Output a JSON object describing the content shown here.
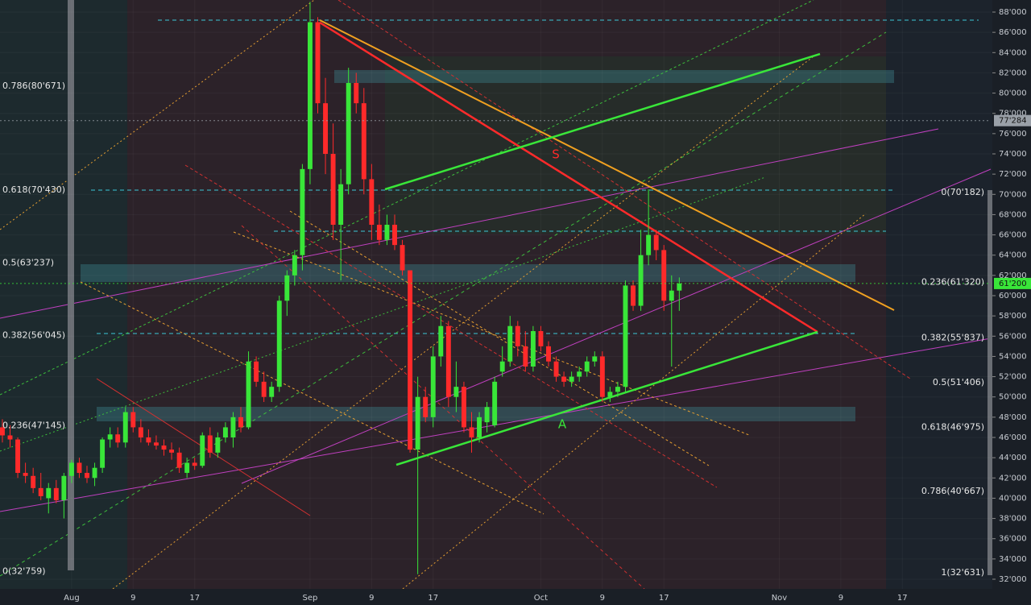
{
  "chart_data": {
    "type": "candlestick",
    "up_color": "#39e639",
    "down_color": "#ff2a2a",
    "grid": true,
    "ylim": [
      31045,
      89193
    ],
    "xlim": [
      -0.31,
      128.49
    ],
    "yticks": [
      {
        "value": 32000,
        "label": "32'000"
      },
      {
        "value": 34000,
        "label": "34'000"
      },
      {
        "value": 36000,
        "label": "36'000"
      },
      {
        "value": 38000,
        "label": "38'000"
      },
      {
        "value": 40000,
        "label": "40'000"
      },
      {
        "value": 42000,
        "label": "42'000"
      },
      {
        "value": 44000,
        "label": "44'000"
      },
      {
        "value": 46000,
        "label": "46'000"
      },
      {
        "value": 48000,
        "label": "48'000"
      },
      {
        "value": 50000,
        "label": "50'000"
      },
      {
        "value": 52000,
        "label": "52'000"
      },
      {
        "value": 54000,
        "label": "54'000"
      },
      {
        "value": 56000,
        "label": "56'000"
      },
      {
        "value": 58000,
        "label": "58'000"
      },
      {
        "value": 60000,
        "label": "60'000"
      },
      {
        "value": 62000,
        "label": "62'000"
      },
      {
        "value": 64000,
        "label": "64'000"
      },
      {
        "value": 66000,
        "label": "66'000"
      },
      {
        "value": 68000,
        "label": "68'000"
      },
      {
        "value": 70000,
        "label": "70'000"
      },
      {
        "value": 72000,
        "label": "72'000"
      },
      {
        "value": 74000,
        "label": "74'000"
      },
      {
        "value": 76000,
        "label": "76'000"
      },
      {
        "value": 78000,
        "label": "78'000"
      },
      {
        "value": 80000,
        "label": "80'000"
      },
      {
        "value": 82000,
        "label": "82'000"
      },
      {
        "value": 84000,
        "label": "84'000"
      },
      {
        "value": 86000,
        "label": "86'000"
      },
      {
        "value": 88000,
        "label": "88'000"
      }
    ],
    "xticks": [
      {
        "value": 9,
        "label": "Aug"
      },
      {
        "value": 17,
        "label": "9"
      },
      {
        "value": 25,
        "label": "17"
      },
      {
        "value": 40,
        "label": "Sep"
      },
      {
        "value": 48,
        "label": "9"
      },
      {
        "value": 56,
        "label": "17"
      },
      {
        "value": 70,
        "label": "Oct"
      },
      {
        "value": 78,
        "label": "9"
      },
      {
        "value": 86,
        "label": "17"
      },
      {
        "value": 101,
        "label": "Nov"
      },
      {
        "value": 109,
        "label": "9"
      },
      {
        "value": 117,
        "label": "17"
      }
    ],
    "candles": [
      [
        47000,
        47800,
        45500,
        46200
      ],
      [
        46200,
        47200,
        45000,
        45800
      ],
      [
        45800,
        46000,
        42000,
        42500
      ],
      [
        42500,
        43500,
        41500,
        42200
      ],
      [
        42200,
        43000,
        40500,
        41000
      ],
      [
        41000,
        42500,
        39800,
        40200
      ],
      [
        40000,
        41500,
        38500,
        41000
      ],
      [
        41000,
        41800,
        39500,
        39800
      ],
      [
        39800,
        42500,
        38000,
        42200
      ],
      [
        42200,
        43800,
        41500,
        43500
      ],
      [
        43500,
        44000,
        42000,
        42500
      ],
      [
        42500,
        43200,
        41500,
        42000
      ],
      [
        42000,
        43500,
        41200,
        43000
      ],
      [
        43000,
        46000,
        42500,
        45800
      ],
      [
        45800,
        47000,
        45000,
        46300
      ],
      [
        46300,
        47000,
        45000,
        45500
      ],
      [
        45500,
        49000,
        45000,
        48500
      ],
      [
        48500,
        49000,
        46500,
        47000
      ],
      [
        47000,
        47800,
        45500,
        46000
      ],
      [
        46000,
        46800,
        45200,
        45500
      ],
      [
        45500,
        46200,
        44800,
        45200
      ],
      [
        45200,
        45800,
        44200,
        44800
      ],
      [
        44800,
        45500,
        43800,
        44500
      ],
      [
        44500,
        45000,
        42500,
        43000
      ],
      [
        42500,
        44000,
        42000,
        43500
      ],
      [
        43500,
        44000,
        42800,
        43200
      ],
      [
        43200,
        46500,
        43000,
        46200
      ],
      [
        46200,
        47000,
        44000,
        44500
      ],
      [
        44500,
        46500,
        44000,
        46000
      ],
      [
        46000,
        47500,
        45500,
        47000
      ],
      [
        46000,
        48500,
        45000,
        48000
      ],
      [
        48000,
        49000,
        46500,
        47000
      ],
      [
        47000,
        54500,
        46800,
        53500
      ],
      [
        53500,
        54000,
        51000,
        51500
      ],
      [
        51500,
        52500,
        49500,
        50000
      ],
      [
        50000,
        51500,
        49500,
        51000
      ],
      [
        51000,
        60000,
        50500,
        59500
      ],
      [
        59500,
        62500,
        58000,
        62000
      ],
      [
        62000,
        64500,
        61000,
        64000
      ],
      [
        64000,
        73000,
        62500,
        72500
      ],
      [
        72500,
        89000,
        71000,
        87000
      ],
      [
        87000,
        87500,
        78000,
        79000
      ],
      [
        79000,
        81500,
        72000,
        74000
      ],
      [
        74000,
        77000,
        65500,
        67000
      ],
      [
        67000,
        72500,
        61500,
        71000
      ],
      [
        71000,
        82500,
        70000,
        81000
      ],
      [
        81000,
        82000,
        78000,
        79000
      ],
      [
        79000,
        80500,
        70000,
        71500
      ],
      [
        71500,
        73000,
        65500,
        67000
      ],
      [
        67000,
        69000,
        65000,
        65500
      ],
      [
        65500,
        68000,
        65000,
        67000
      ],
      [
        67000,
        68000,
        64500,
        65000
      ],
      [
        65000,
        65500,
        62000,
        62500
      ],
      [
        62500,
        62500,
        44500,
        44800
      ],
      [
        44800,
        52000,
        32500,
        50000
      ],
      [
        50000,
        51000,
        47500,
        48000
      ],
      [
        48000,
        55000,
        47000,
        54000
      ],
      [
        54000,
        58000,
        53000,
        57000
      ],
      [
        57000,
        57500,
        49000,
        50000
      ],
      [
        50000,
        53500,
        48500,
        51000
      ],
      [
        51000,
        51500,
        46500,
        47000
      ],
      [
        47000,
        48500,
        44500,
        46000
      ],
      [
        46000,
        48500,
        45500,
        48000
      ],
      [
        47500,
        49500,
        46500,
        49000
      ],
      [
        47200,
        52000,
        47000,
        51500
      ],
      [
        52500,
        55000,
        52000,
        53500
      ],
      [
        53500,
        58000,
        53000,
        57000
      ],
      [
        57000,
        57500,
        54000,
        55000
      ],
      [
        55000,
        56500,
        52500,
        53000
      ],
      [
        53000,
        57000,
        52500,
        56500
      ],
      [
        56500,
        57000,
        54500,
        55000
      ],
      [
        55000,
        55500,
        53000,
        53500
      ],
      [
        53500,
        54000,
        51500,
        52000
      ],
      [
        52000,
        52500,
        51000,
        51500
      ],
      [
        51500,
        52500,
        51000,
        52000
      ],
      [
        52000,
        53000,
        51500,
        52500
      ],
      [
        52500,
        54000,
        52000,
        53500
      ],
      [
        53500,
        54500,
        53000,
        54000
      ],
      [
        54000,
        54500,
        49500,
        50000
      ],
      [
        50000,
        51000,
        49500,
        50500
      ],
      [
        50500,
        51500,
        50000,
        51000
      ],
      [
        51000,
        61500,
        50500,
        61000
      ],
      [
        61000,
        61500,
        58500,
        59000
      ],
      [
        59000,
        66500,
        58500,
        64000
      ],
      [
        64000,
        70500,
        63000,
        66000
      ],
      [
        66000,
        66500,
        63500,
        64500
      ],
      [
        64500,
        65000,
        58500,
        59500
      ],
      [
        59500,
        62000,
        53000,
        60500
      ],
      [
        60500,
        61800,
        58500,
        61200
      ]
    ],
    "fib_left": [
      {
        "value": 80671,
        "label": "0.786(80'671)"
      },
      {
        "value": 70430,
        "label": "0.618(70'430)"
      },
      {
        "value": 63237,
        "label": "0.5(63'237)"
      },
      {
        "value": 56045,
        "label": "0.382(56'045)"
      },
      {
        "value": 47145,
        "label": "0.236(47'145)"
      },
      {
        "value": 32759,
        "label": "0(32'759)"
      }
    ],
    "fib_right": [
      {
        "value": 70182,
        "label": "0(70'182)"
      },
      {
        "value": 61320,
        "label": "0.236(61'320)"
      },
      {
        "value": 55837,
        "label": "0.382(55'837)"
      },
      {
        "value": 51406,
        "label": "0.5(51'406)"
      },
      {
        "value": 46975,
        "label": "0.618(46'975)"
      },
      {
        "value": 40667,
        "label": "0.786(40'667)"
      },
      {
        "value": 32631,
        "label": "1(32'631)"
      }
    ],
    "price_tags": [
      {
        "value": 77284,
        "label": "77'284",
        "color": "#9aa0a8"
      },
      {
        "value": 61200,
        "label": "61'200",
        "color": "#39e639"
      }
    ],
    "annotations": [
      "S",
      "A"
    ]
  }
}
